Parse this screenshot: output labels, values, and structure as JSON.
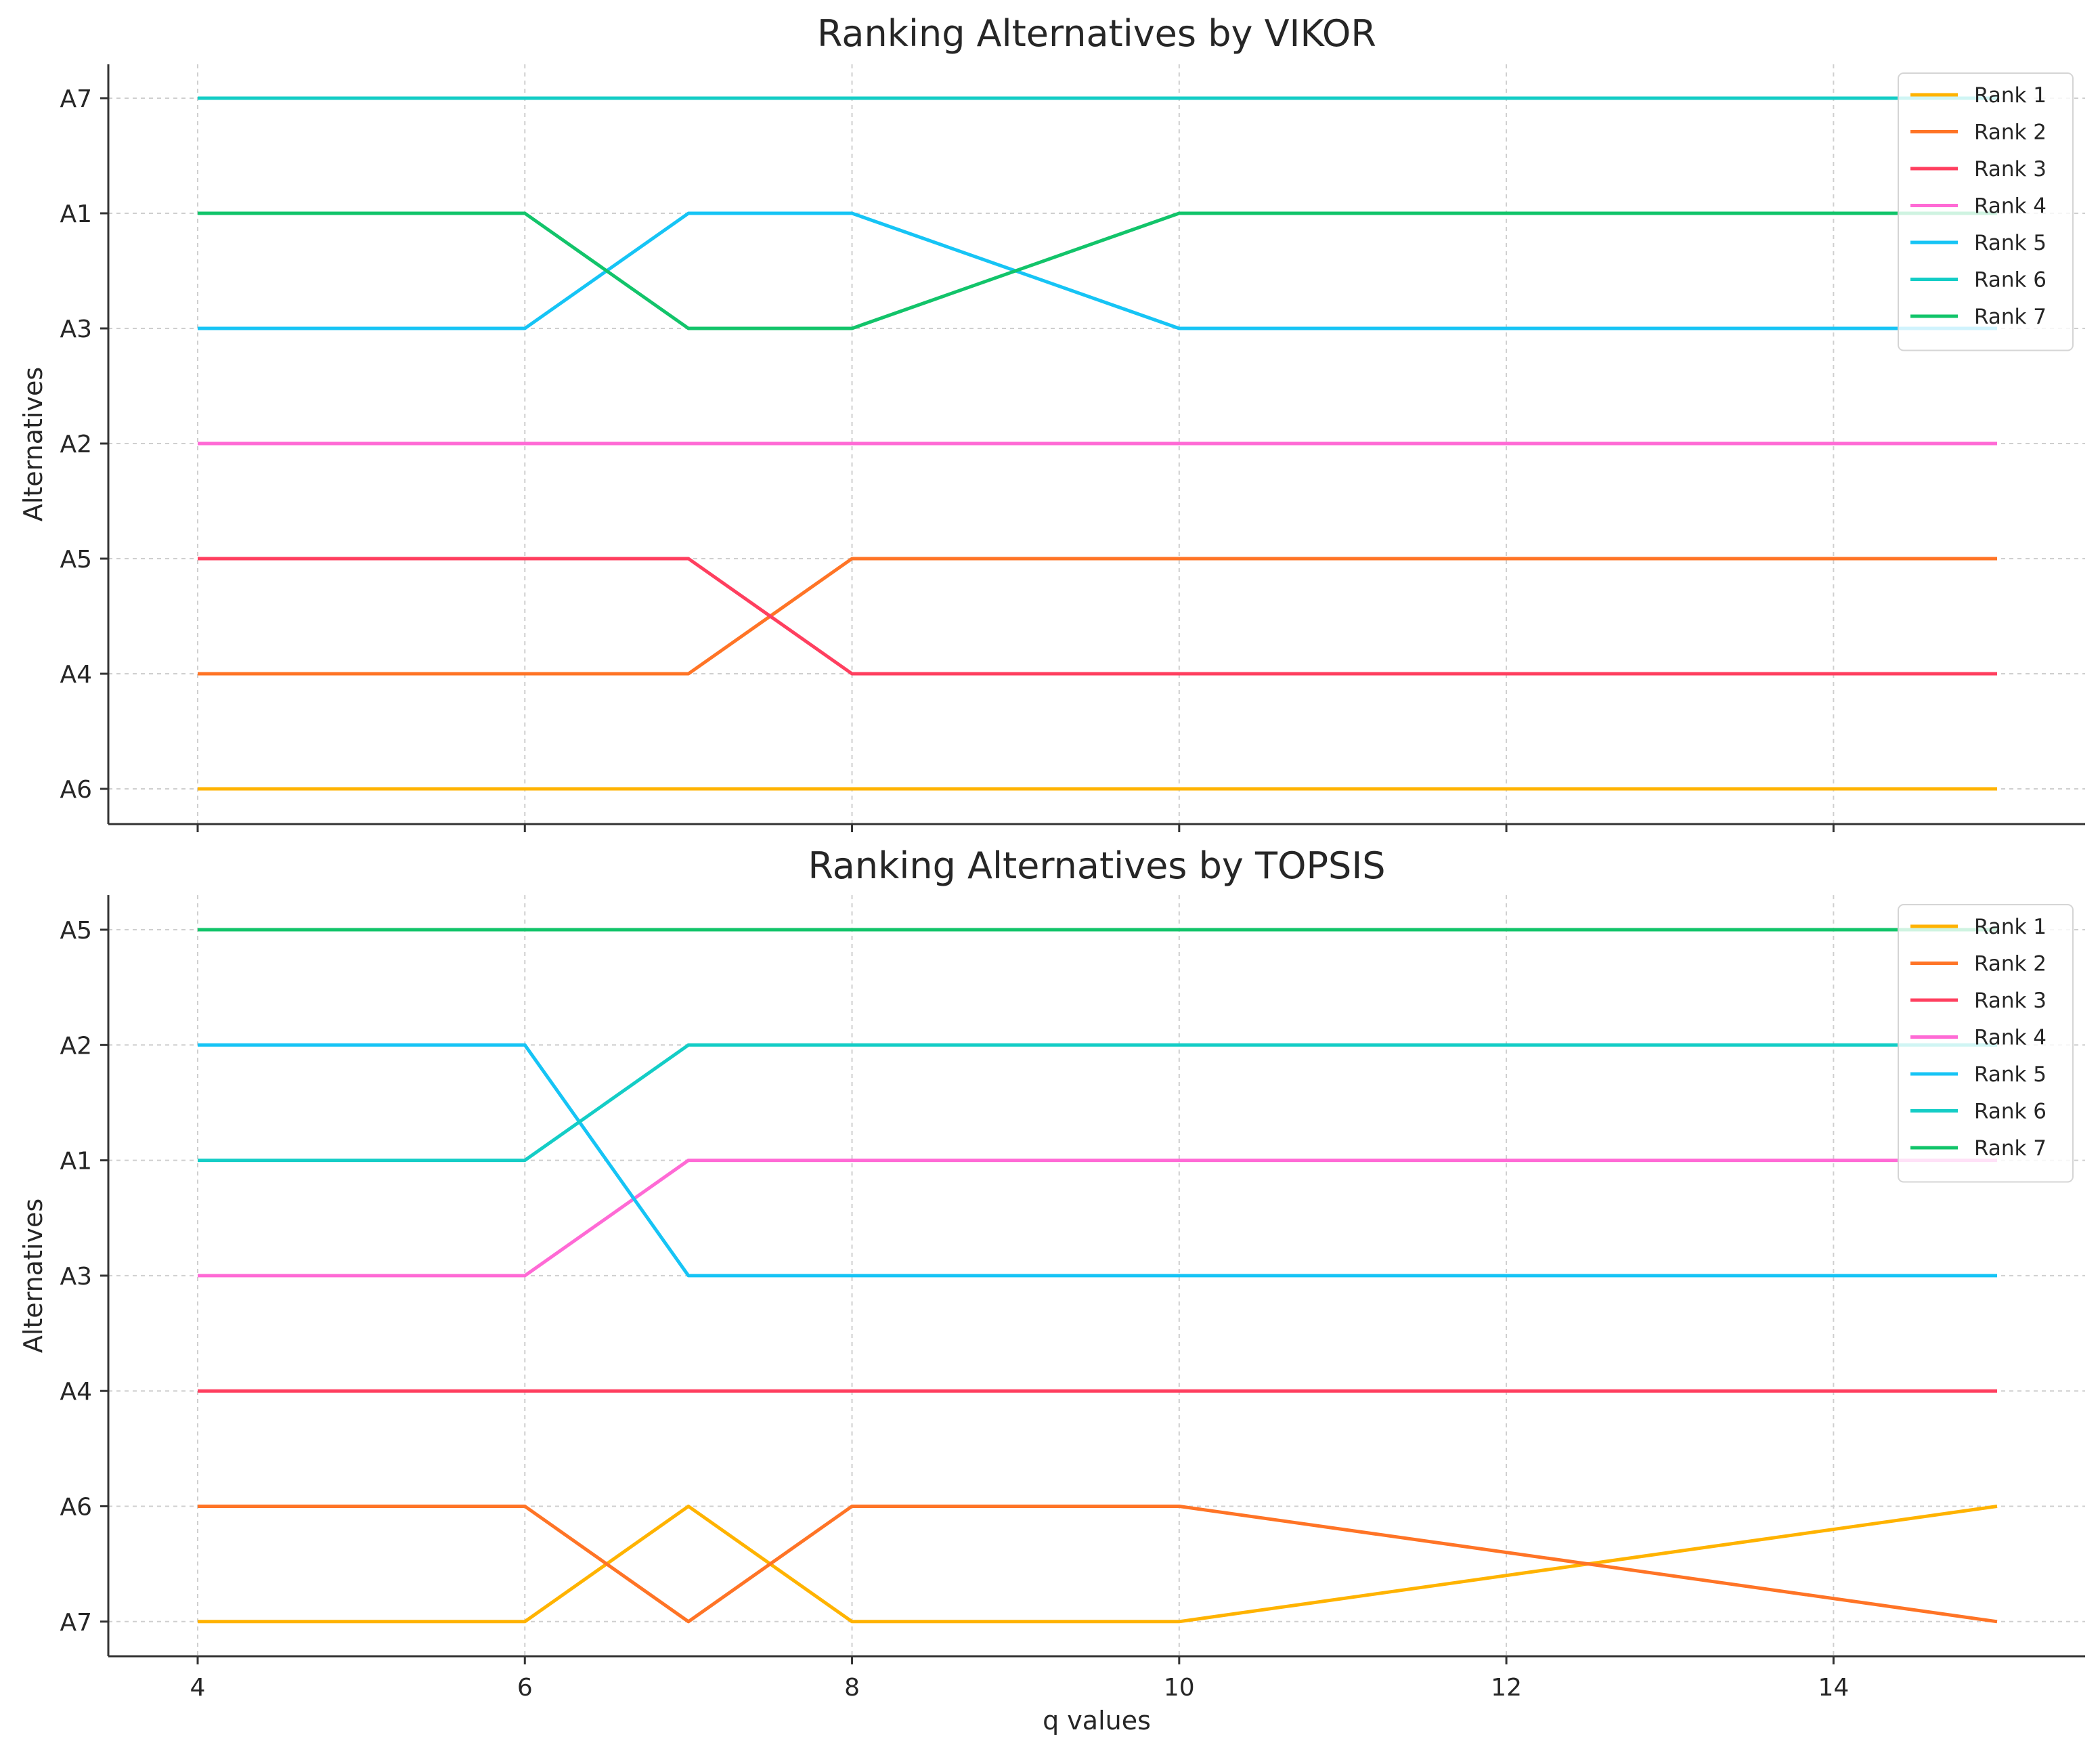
{
  "chart_data": [
    {
      "type": "line",
      "title": "Ranking Alternatives by VIKOR",
      "xlabel": "",
      "ylabel": "Alternatives",
      "x": [
        4,
        6,
        7,
        8,
        10,
        15
      ],
      "xticks": [
        4,
        6,
        8,
        10,
        12,
        14
      ],
      "xlim": [
        3.45,
        15.55
      ],
      "y_categories": [
        "A6",
        "A4",
        "A5",
        "A2",
        "A3",
        "A1",
        "A7"
      ],
      "grid": true,
      "legend_position": "upper right",
      "series": [
        {
          "name": "Rank 1",
          "color": "#FFB300",
          "values": [
            "A6",
            "A6",
            "A6",
            "A6",
            "A6",
            "A6"
          ]
        },
        {
          "name": "Rank 2",
          "color": "#FF7426",
          "values": [
            "A4",
            "A4",
            "A4",
            "A5",
            "A5",
            "A5"
          ]
        },
        {
          "name": "Rank 3",
          "color": "#FF3F5F",
          "values": [
            "A5",
            "A5",
            "A5",
            "A4",
            "A4",
            "A4"
          ]
        },
        {
          "name": "Rank 4",
          "color": "#FF6AD5",
          "values": [
            "A2",
            "A2",
            "A2",
            "A2",
            "A2",
            "A2"
          ]
        },
        {
          "name": "Rank 5",
          "color": "#16C4F5",
          "values": [
            "A3",
            "A3",
            "A1",
            "A1",
            "A3",
            "A3"
          ]
        },
        {
          "name": "Rank 6",
          "color": "#14CDC6",
          "values": [
            "A7",
            "A7",
            "A7",
            "A7",
            "A7",
            "A7"
          ]
        },
        {
          "name": "Rank 7",
          "color": "#12C46A",
          "values": [
            "A1",
            "A1",
            "A3",
            "A3",
            "A1",
            "A1"
          ]
        }
      ]
    },
    {
      "type": "line",
      "title": "Ranking Alternatives by TOPSIS",
      "xlabel": "q values",
      "ylabel": "Alternatives",
      "x": [
        4,
        6,
        7,
        8,
        10,
        15
      ],
      "xticks": [
        4,
        6,
        8,
        10,
        12,
        14
      ],
      "xlim": [
        3.45,
        15.55
      ],
      "y_categories": [
        "A7",
        "A6",
        "A4",
        "A3",
        "A1",
        "A2",
        "A5"
      ],
      "grid": true,
      "legend_position": "upper right",
      "series": [
        {
          "name": "Rank 1",
          "color": "#FFB300",
          "values": [
            "A7",
            "A7",
            "A6",
            "A7",
            "A7",
            "A6"
          ]
        },
        {
          "name": "Rank 2",
          "color": "#FF7426",
          "values": [
            "A6",
            "A6",
            "A7",
            "A6",
            "A6",
            "A7"
          ]
        },
        {
          "name": "Rank 3",
          "color": "#FF3F5F",
          "values": [
            "A4",
            "A4",
            "A4",
            "A4",
            "A4",
            "A4"
          ]
        },
        {
          "name": "Rank 4",
          "color": "#FF6AD5",
          "values": [
            "A3",
            "A3",
            "A1",
            "A1",
            "A1",
            "A1"
          ]
        },
        {
          "name": "Rank 5",
          "color": "#16C4F5",
          "values": [
            "A2",
            "A2",
            "A3",
            "A3",
            "A3",
            "A3"
          ]
        },
        {
          "name": "Rank 6",
          "color": "#14CDC6",
          "values": [
            "A1",
            "A1",
            "A2",
            "A2",
            "A2",
            "A2"
          ]
        },
        {
          "name": "Rank 7",
          "color": "#12C46A",
          "values": [
            "A5",
            "A5",
            "A5",
            "A5",
            "A5",
            "A5"
          ]
        }
      ]
    }
  ]
}
